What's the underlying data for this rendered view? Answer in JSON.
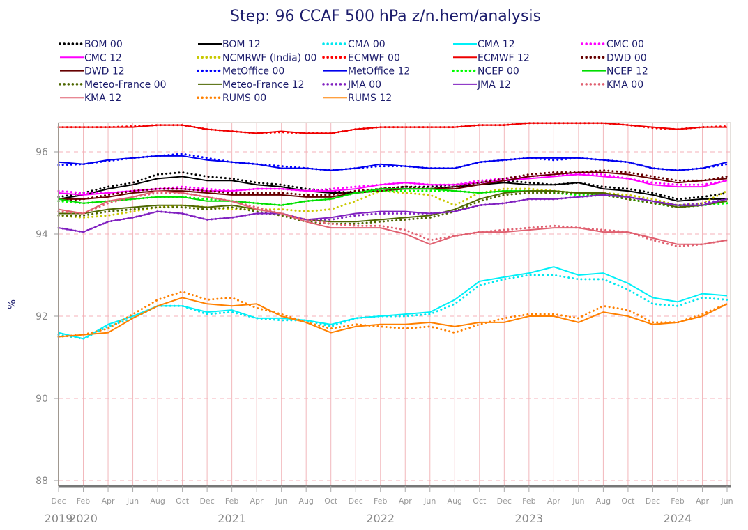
{
  "chart_data": {
    "type": "line",
    "title": "Step: 96 CCAF 500 hPa z/n.hem/analysis",
    "xlabel": "",
    "ylabel": "%",
    "ylim": [
      87.85,
      96.7
    ],
    "yticks": [
      88,
      90,
      92,
      94,
      96
    ],
    "grid": true,
    "legend_placement": "top",
    "x_month_labels": [
      "Dec",
      "Feb",
      "Apr",
      "Jun",
      "Aug",
      "Oct",
      "Dec",
      "Feb",
      "Apr",
      "Jun",
      "Aug",
      "Oct",
      "Dec",
      "Feb",
      "Apr",
      "Jun",
      "Aug",
      "Oct",
      "Dec",
      "Feb",
      "Apr",
      "Jun",
      "Aug",
      "Oct",
      "Dec",
      "Feb",
      "Apr",
      "Jun"
    ],
    "x_year_labels": [
      {
        "label": "2019",
        "month_index": 0
      },
      {
        "label": "2020",
        "month_index": 1
      },
      {
        "label": "2021",
        "month_index": 7
      },
      {
        "label": "2022",
        "month_index": 13
      },
      {
        "label": "2023",
        "month_index": 19
      },
      {
        "label": "2024",
        "month_index": 25
      }
    ],
    "series": [
      {
        "name": "BOM 00",
        "color": "#000000",
        "style": "dotted",
        "values": [
          94.9,
          95.0,
          95.15,
          95.25,
          95.45,
          95.5,
          95.4,
          95.35,
          95.25,
          95.2,
          95.1,
          95.05,
          95.0,
          95.1,
          95.15,
          95.15,
          95.2,
          95.25,
          95.3,
          95.25,
          95.2,
          95.25,
          95.15,
          95.1,
          95.0,
          94.85,
          94.9,
          95.0
        ]
      },
      {
        "name": "BOM 12",
        "color": "#000000",
        "style": "solid",
        "values": [
          94.85,
          94.95,
          95.1,
          95.2,
          95.35,
          95.4,
          95.3,
          95.3,
          95.2,
          95.15,
          95.05,
          95.0,
          95.0,
          95.1,
          95.1,
          95.1,
          95.15,
          95.2,
          95.25,
          95.2,
          95.2,
          95.25,
          95.1,
          95.05,
          94.95,
          94.8,
          94.85,
          94.85
        ]
      },
      {
        "name": "CMA 00",
        "color": "#00e8f0",
        "style": "dotted",
        "values": [
          91.55,
          91.45,
          91.75,
          91.95,
          92.25,
          92.25,
          92.05,
          92.1,
          91.95,
          91.9,
          91.9,
          91.75,
          91.95,
          92.0,
          92.0,
          92.05,
          92.3,
          92.75,
          92.9,
          93.0,
          93.0,
          92.9,
          92.9,
          92.65,
          92.3,
          92.25,
          92.45,
          92.4
        ]
      },
      {
        "name": "CMA 12",
        "color": "#00f0f8",
        "style": "solid",
        "values": [
          91.6,
          91.45,
          91.8,
          92.0,
          92.25,
          92.25,
          92.1,
          92.15,
          91.95,
          91.95,
          91.9,
          91.8,
          91.95,
          92.0,
          92.05,
          92.1,
          92.4,
          92.85,
          92.95,
          93.05,
          93.2,
          93.0,
          93.05,
          92.8,
          92.45,
          92.35,
          92.55,
          92.5
        ]
      },
      {
        "name": "CMC 00",
        "color": "#ff00ff",
        "style": "dotted",
        "values": [
          95.05,
          95.0,
          95.0,
          95.05,
          95.1,
          95.15,
          95.1,
          95.05,
          95.1,
          95.1,
          95.05,
          95.1,
          95.15,
          95.2,
          95.25,
          95.2,
          95.2,
          95.3,
          95.35,
          95.4,
          95.45,
          95.45,
          95.45,
          95.35,
          95.25,
          95.2,
          95.2,
          95.3
        ]
      },
      {
        "name": "CMC 12",
        "color": "#ff00ff",
        "style": "solid",
        "values": [
          95.0,
          94.95,
          95.0,
          95.05,
          95.1,
          95.1,
          95.05,
          95.05,
          95.1,
          95.1,
          95.05,
          95.05,
          95.1,
          95.2,
          95.25,
          95.2,
          95.2,
          95.25,
          95.3,
          95.35,
          95.4,
          95.45,
          95.4,
          95.35,
          95.2,
          95.15,
          95.15,
          95.3
        ]
      },
      {
        "name": "NCMRWF (India) 00",
        "color": "#c8c800",
        "style": "dotted",
        "values": [
          94.45,
          94.4,
          94.45,
          94.55,
          94.65,
          94.7,
          94.65,
          94.6,
          94.6,
          94.6,
          94.55,
          94.6,
          94.8,
          95.05,
          95.0,
          94.95,
          94.7,
          95.0,
          95.1,
          95.1,
          95.05,
          95.0,
          95.0,
          94.95,
          94.85,
          94.7,
          94.75,
          95.05
        ]
      },
      {
        "name": "ECMWF 00",
        "color": "#ff0000",
        "style": "dotted",
        "values": [
          96.6,
          96.6,
          96.6,
          96.62,
          96.65,
          96.65,
          96.55,
          96.5,
          96.45,
          96.48,
          96.45,
          96.45,
          96.55,
          96.6,
          96.6,
          96.6,
          96.6,
          96.65,
          96.65,
          96.7,
          96.7,
          96.7,
          96.7,
          96.65,
          96.58,
          96.55,
          96.6,
          96.62
        ]
      },
      {
        "name": "ECMWF 12",
        "color": "#ee0000",
        "style": "solid",
        "values": [
          96.6,
          96.6,
          96.6,
          96.6,
          96.65,
          96.65,
          96.55,
          96.5,
          96.45,
          96.5,
          96.45,
          96.45,
          96.55,
          96.6,
          96.6,
          96.6,
          96.6,
          96.65,
          96.65,
          96.7,
          96.7,
          96.7,
          96.7,
          96.65,
          96.6,
          96.55,
          96.6,
          96.6
        ]
      },
      {
        "name": "DWD 00",
        "color": "#660000",
        "style": "dotted",
        "values": [
          94.8,
          94.85,
          94.95,
          95.05,
          95.1,
          95.1,
          95.05,
          95.0,
          95.0,
          95.0,
          94.95,
          94.95,
          95.05,
          95.1,
          95.15,
          95.1,
          95.15,
          95.25,
          95.35,
          95.45,
          95.5,
          95.5,
          95.55,
          95.5,
          95.4,
          95.3,
          95.3,
          95.4
        ]
      },
      {
        "name": "DWD 12",
        "color": "#660000",
        "style": "solid",
        "values": [
          94.85,
          94.85,
          94.9,
          95.0,
          95.05,
          95.05,
          95.0,
          94.95,
          94.95,
          94.95,
          94.9,
          94.9,
          95.0,
          95.05,
          95.1,
          95.1,
          95.1,
          95.2,
          95.3,
          95.4,
          95.45,
          95.5,
          95.5,
          95.45,
          95.35,
          95.25,
          95.3,
          95.35
        ]
      },
      {
        "name": "MetOffice 00",
        "color": "#0000ff",
        "style": "dotted",
        "values": [
          95.68,
          95.7,
          95.78,
          95.85,
          95.9,
          95.95,
          95.85,
          95.75,
          95.7,
          95.65,
          95.6,
          95.55,
          95.6,
          95.65,
          95.65,
          95.6,
          95.6,
          95.75,
          95.8,
          95.85,
          95.8,
          95.85,
          95.8,
          95.75,
          95.6,
          95.55,
          95.6,
          95.7
        ]
      },
      {
        "name": "MetOffice 12",
        "color": "#0000ee",
        "style": "solid",
        "values": [
          95.75,
          95.7,
          95.8,
          95.85,
          95.9,
          95.9,
          95.8,
          95.75,
          95.7,
          95.6,
          95.6,
          95.55,
          95.6,
          95.7,
          95.65,
          95.6,
          95.6,
          95.75,
          95.8,
          95.85,
          95.85,
          95.85,
          95.8,
          95.75,
          95.6,
          95.55,
          95.6,
          95.75
        ]
      },
      {
        "name": "NCEP 00",
        "color": "#00ff00",
        "style": "dotted",
        "values": [
          94.8,
          94.75,
          94.8,
          94.85,
          94.9,
          94.9,
          94.85,
          94.8,
          94.75,
          94.7,
          94.8,
          94.85,
          95.0,
          95.05,
          95.05,
          95.05,
          95.05,
          95.0,
          95.05,
          95.05,
          95.0,
          94.95,
          94.95,
          94.85,
          94.75,
          94.65,
          94.7,
          94.75
        ]
      },
      {
        "name": "NCEP 12",
        "color": "#00dd00",
        "style": "solid",
        "values": [
          94.85,
          94.75,
          94.8,
          94.85,
          94.9,
          94.9,
          94.8,
          94.8,
          94.75,
          94.7,
          94.8,
          94.85,
          95.0,
          95.1,
          95.1,
          95.1,
          95.05,
          95.0,
          95.05,
          95.05,
          95.05,
          95.0,
          94.95,
          94.9,
          94.8,
          94.7,
          94.7,
          94.8
        ]
      },
      {
        "name": "Meteo-France 00",
        "color": "#4d6600",
        "style": "dotted",
        "values": [
          94.45,
          94.45,
          94.55,
          94.6,
          94.65,
          94.65,
          94.6,
          94.65,
          94.55,
          94.45,
          94.3,
          94.25,
          94.25,
          94.3,
          94.35,
          94.4,
          94.55,
          94.8,
          94.95,
          95.0,
          95.0,
          95.0,
          94.95,
          94.85,
          94.75,
          94.65,
          94.7,
          94.85
        ]
      },
      {
        "name": "Meteo-France 12",
        "color": "#4d6600",
        "style": "solid",
        "values": [
          94.5,
          94.5,
          94.6,
          94.65,
          94.7,
          94.7,
          94.65,
          94.7,
          94.6,
          94.5,
          94.35,
          94.3,
          94.3,
          94.35,
          94.4,
          94.45,
          94.6,
          94.85,
          95.0,
          95.05,
          95.05,
          95.0,
          95.0,
          94.9,
          94.8,
          94.65,
          94.7,
          94.8
        ]
      },
      {
        "name": "JMA 00",
        "color": "#8020c0",
        "style": "dotted",
        "values": [
          94.15,
          94.05,
          94.3,
          94.4,
          94.55,
          94.5,
          94.35,
          94.4,
          94.5,
          94.5,
          94.35,
          94.35,
          94.45,
          94.5,
          94.5,
          94.5,
          94.55,
          94.7,
          94.75,
          94.85,
          94.85,
          94.9,
          94.95,
          94.9,
          94.8,
          94.7,
          94.75,
          94.85
        ]
      },
      {
        "name": "JMA 12",
        "color": "#8020c0",
        "style": "solid",
        "values": [
          94.15,
          94.05,
          94.3,
          94.4,
          94.55,
          94.5,
          94.35,
          94.4,
          94.5,
          94.5,
          94.35,
          94.4,
          94.5,
          94.55,
          94.55,
          94.5,
          94.55,
          94.7,
          94.75,
          94.85,
          94.85,
          94.9,
          94.95,
          94.9,
          94.8,
          94.7,
          94.7,
          94.85
        ]
      },
      {
        "name": "KMA 00",
        "color": "#e06070",
        "style": "dotted",
        "values": [
          94.55,
          94.5,
          94.75,
          94.9,
          95.0,
          95.0,
          94.9,
          94.8,
          94.65,
          94.5,
          94.35,
          94.25,
          94.2,
          94.2,
          94.1,
          93.85,
          93.95,
          94.05,
          94.1,
          94.15,
          94.2,
          94.15,
          94.1,
          94.05,
          93.85,
          93.7,
          93.75,
          93.85
        ]
      },
      {
        "name": "KMA 12",
        "color": "#e06070",
        "style": "solid",
        "values": [
          94.6,
          94.5,
          94.8,
          94.9,
          95.05,
          95.0,
          94.9,
          94.8,
          94.6,
          94.5,
          94.3,
          94.15,
          94.15,
          94.15,
          94.0,
          93.75,
          93.95,
          94.05,
          94.05,
          94.1,
          94.15,
          94.15,
          94.05,
          94.05,
          93.9,
          93.75,
          93.75,
          93.85
        ]
      },
      {
        "name": "RUMS 00",
        "color": "#ff8000",
        "style": "dotted",
        "values": [
          91.5,
          91.55,
          91.7,
          92.05,
          92.4,
          92.6,
          92.4,
          92.45,
          92.2,
          92.05,
          91.85,
          91.7,
          91.8,
          91.75,
          91.7,
          91.75,
          91.6,
          91.8,
          91.95,
          92.05,
          92.05,
          91.95,
          92.25,
          92.15,
          91.85,
          91.85,
          92.05,
          92.3
        ]
      },
      {
        "name": "RUMS 12",
        "color": "#ff8000",
        "style": "solid",
        "values": [
          91.5,
          91.55,
          91.6,
          91.95,
          92.25,
          92.45,
          92.3,
          92.25,
          92.3,
          92.0,
          91.85,
          91.6,
          91.75,
          91.8,
          91.8,
          91.85,
          91.75,
          91.85,
          91.85,
          92.0,
          92.0,
          91.85,
          92.1,
          92.0,
          91.8,
          91.85,
          92.0,
          92.3
        ]
      }
    ]
  }
}
